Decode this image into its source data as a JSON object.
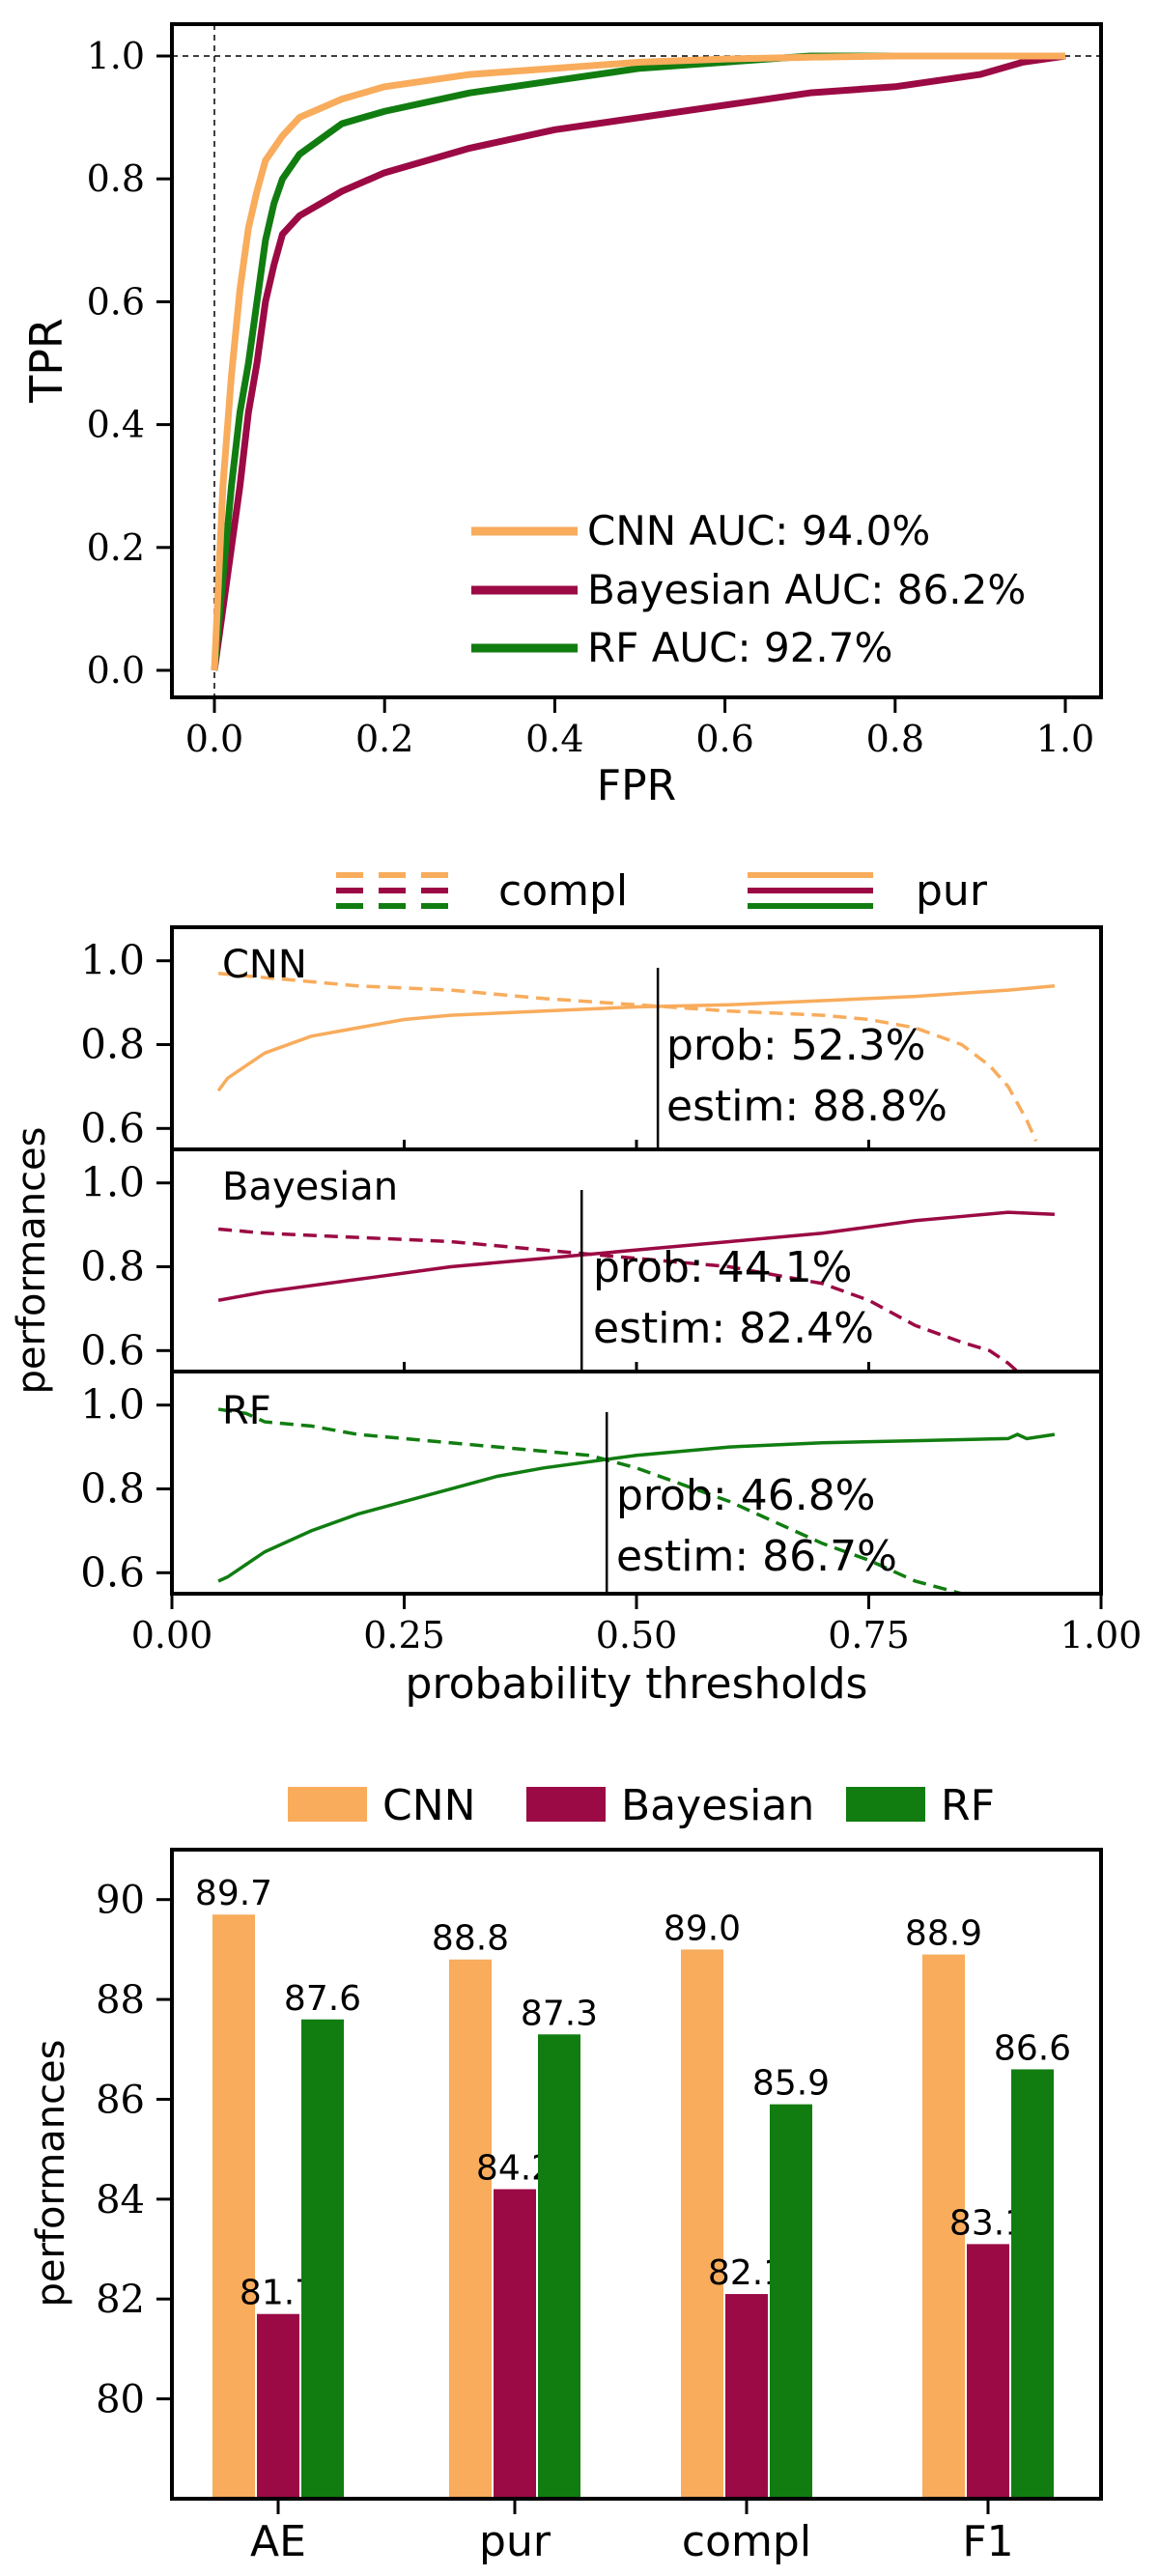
{
  "colors": {
    "cnn": "#f8ac5c",
    "bayesian": "#9b0a44",
    "rf": "#117d11"
  },
  "chart_data": [
    {
      "type": "line",
      "xlabel": "FPR",
      "ylabel": "TPR",
      "xlim": [
        0,
        1
      ],
      "ylim": [
        0,
        1
      ],
      "x_ticks": [
        "0.0",
        "0.2",
        "0.4",
        "0.6",
        "0.8",
        "1.0"
      ],
      "y_ticks": [
        "0.0",
        "0.2",
        "0.4",
        "0.6",
        "0.8",
        "1.0"
      ],
      "reference_lines": {
        "vertical_x": 0,
        "horizontal_y": 1,
        "style": "dashed"
      },
      "legend": {
        "placement": "lower-right",
        "entries": [
          "CNN AUC: 94.0%",
          "Bayesian AUC: 86.2%",
          "RF AUC: 92.7%"
        ]
      },
      "series": [
        {
          "key": "cnn",
          "x": [
            0,
            0.005,
            0.01,
            0.02,
            0.03,
            0.04,
            0.05,
            0.06,
            0.08,
            0.1,
            0.15,
            0.2,
            0.3,
            0.4,
            0.5,
            0.6,
            0.7,
            0.8,
            0.9,
            1.0
          ],
          "y": [
            0,
            0.15,
            0.3,
            0.48,
            0.62,
            0.72,
            0.78,
            0.83,
            0.87,
            0.9,
            0.93,
            0.95,
            0.97,
            0.98,
            0.99,
            0.995,
            0.998,
            1.0,
            1.0,
            1.0
          ]
        },
        {
          "key": "bayesian",
          "x": [
            0,
            0.01,
            0.02,
            0.03,
            0.04,
            0.05,
            0.06,
            0.07,
            0.08,
            0.1,
            0.15,
            0.2,
            0.3,
            0.4,
            0.5,
            0.6,
            0.7,
            0.8,
            0.9,
            0.95,
            1.0
          ],
          "y": [
            0,
            0.1,
            0.2,
            0.3,
            0.42,
            0.5,
            0.6,
            0.66,
            0.71,
            0.74,
            0.78,
            0.81,
            0.85,
            0.88,
            0.9,
            0.92,
            0.94,
            0.95,
            0.97,
            0.99,
            1.0
          ]
        },
        {
          "key": "rf",
          "x": [
            0,
            0.01,
            0.02,
            0.03,
            0.04,
            0.05,
            0.06,
            0.07,
            0.08,
            0.1,
            0.15,
            0.2,
            0.3,
            0.4,
            0.5,
            0.6,
            0.7,
            0.8,
            0.9,
            1.0
          ],
          "y": [
            0,
            0.15,
            0.3,
            0.42,
            0.5,
            0.6,
            0.7,
            0.76,
            0.8,
            0.84,
            0.89,
            0.91,
            0.94,
            0.96,
            0.98,
            0.99,
            1.0,
            1.0,
            1.0,
            1.0
          ]
        }
      ]
    },
    {
      "type": "line",
      "xlabel": "probability thresholds",
      "ylabel": "performances",
      "xlim": [
        0,
        1
      ],
      "x_ticks": [
        "0.00",
        "0.25",
        "0.50",
        "0.75",
        "1.00"
      ],
      "legend": {
        "placement": "top",
        "entries": [
          "compl",
          "pur"
        ]
      },
      "panels": [
        {
          "key": "cnn",
          "label": "CNN",
          "ylim": [
            0.55,
            1.08
          ],
          "y_ticks": [
            "0.6",
            "0.8",
            "1.0"
          ],
          "threshold": 0.523,
          "prob_text": "prob:  52.3%",
          "estim_text": "estim:  88.8%",
          "pur": {
            "x": [
              0.05,
              0.06,
              0.08,
              0.1,
              0.15,
              0.2,
              0.25,
              0.3,
              0.4,
              0.5,
              0.6,
              0.7,
              0.8,
              0.9,
              0.95
            ],
            "y": [
              0.69,
              0.72,
              0.75,
              0.78,
              0.82,
              0.84,
              0.86,
              0.87,
              0.88,
              0.89,
              0.895,
              0.905,
              0.915,
              0.93,
              0.94
            ]
          },
          "compl": {
            "x": [
              0.05,
              0.1,
              0.2,
              0.3,
              0.4,
              0.5,
              0.6,
              0.7,
              0.75,
              0.8,
              0.85,
              0.88,
              0.9,
              0.92,
              0.93
            ],
            "y": [
              0.97,
              0.96,
              0.94,
              0.93,
              0.91,
              0.895,
              0.88,
              0.87,
              0.86,
              0.84,
              0.8,
              0.75,
              0.7,
              0.62,
              0.57
            ]
          }
        },
        {
          "key": "bayesian",
          "label": "Bayesian",
          "ylim": [
            0.55,
            1.08
          ],
          "y_ticks": [
            "0.6",
            "0.8",
            "1.0"
          ],
          "threshold": 0.441,
          "prob_text": "prob:  44.1%",
          "estim_text": "estim:  82.4%",
          "pur": {
            "x": [
              0.05,
              0.1,
              0.2,
              0.3,
              0.4,
              0.5,
              0.6,
              0.7,
              0.8,
              0.85,
              0.9,
              0.95
            ],
            "y": [
              0.72,
              0.74,
              0.77,
              0.8,
              0.82,
              0.84,
              0.86,
              0.88,
              0.91,
              0.92,
              0.93,
              0.925
            ]
          },
          "compl": {
            "x": [
              0.05,
              0.1,
              0.2,
              0.3,
              0.4,
              0.5,
              0.6,
              0.7,
              0.75,
              0.8,
              0.85,
              0.88,
              0.9,
              0.91
            ],
            "y": [
              0.89,
              0.88,
              0.87,
              0.86,
              0.84,
              0.82,
              0.8,
              0.76,
              0.72,
              0.66,
              0.62,
              0.6,
              0.57,
              0.55
            ]
          }
        },
        {
          "key": "rf",
          "label": "RF",
          "ylim": [
            0.55,
            1.08
          ],
          "y_ticks": [
            "0.6",
            "0.8",
            "1.0"
          ],
          "threshold": 0.468,
          "prob_text": "prob:  46.8%",
          "estim_text": "estim:  86.7%",
          "pur": {
            "x": [
              0.05,
              0.06,
              0.08,
              0.1,
              0.15,
              0.2,
              0.25,
              0.3,
              0.35,
              0.4,
              0.5,
              0.6,
              0.7,
              0.8,
              0.9,
              0.91,
              0.92,
              0.95
            ],
            "y": [
              0.58,
              0.59,
              0.62,
              0.65,
              0.7,
              0.74,
              0.77,
              0.8,
              0.83,
              0.85,
              0.88,
              0.9,
              0.91,
              0.915,
              0.92,
              0.93,
              0.92,
              0.93
            ]
          },
          "compl": {
            "x": [
              0.05,
              0.08,
              0.1,
              0.15,
              0.2,
              0.3,
              0.4,
              0.45,
              0.5,
              0.55,
              0.6,
              0.65,
              0.7,
              0.75,
              0.8,
              0.85
            ],
            "y": [
              0.99,
              0.98,
              0.96,
              0.95,
              0.93,
              0.91,
              0.89,
              0.88,
              0.85,
              0.81,
              0.77,
              0.72,
              0.67,
              0.63,
              0.58,
              0.55
            ]
          }
        }
      ]
    },
    {
      "type": "bar",
      "ylabel": "performances",
      "categories": [
        "AE",
        "pur",
        "compl",
        "F1"
      ],
      "ylim": [
        78,
        91
      ],
      "y_ticks": [
        "80",
        "82",
        "84",
        "86",
        "88",
        "90"
      ],
      "legend": {
        "placement": "top",
        "entries": [
          "CNN",
          "Bayesian",
          "RF"
        ]
      },
      "series": [
        {
          "key": "cnn",
          "name": "CNN",
          "values": [
            89.7,
            88.8,
            89.0,
            88.9
          ],
          "labels": [
            "89.7",
            "88.8",
            "89.0",
            "88.9"
          ]
        },
        {
          "key": "bayesian",
          "name": "Bayesian",
          "values": [
            81.7,
            84.2,
            82.1,
            83.1
          ],
          "labels": [
            "81.7",
            "84.2",
            "82.1",
            "83.1"
          ]
        },
        {
          "key": "rf",
          "name": "RF",
          "values": [
            87.6,
            87.3,
            85.9,
            86.6
          ],
          "labels": [
            "87.6",
            "87.3",
            "85.9",
            "86.6"
          ]
        }
      ]
    }
  ]
}
